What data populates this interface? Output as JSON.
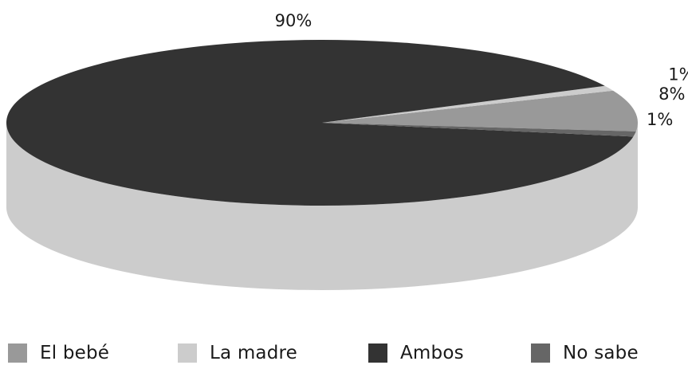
{
  "chart_data": {
    "type": "pie",
    "style": "3d",
    "title": "",
    "categories": [
      "El bebé",
      "La madre",
      "Ambos",
      "No sabe"
    ],
    "values": [
      8,
      1,
      90,
      1
    ],
    "data_labels": [
      "8%",
      "1%",
      "90%",
      "1%"
    ],
    "colors": [
      "#999999",
      "#cccccc",
      "#333333",
      "#666666"
    ],
    "legend": {
      "position": "bottom",
      "entries": [
        "El bebé",
        "La madre",
        "Ambos",
        "No sabe"
      ]
    }
  }
}
